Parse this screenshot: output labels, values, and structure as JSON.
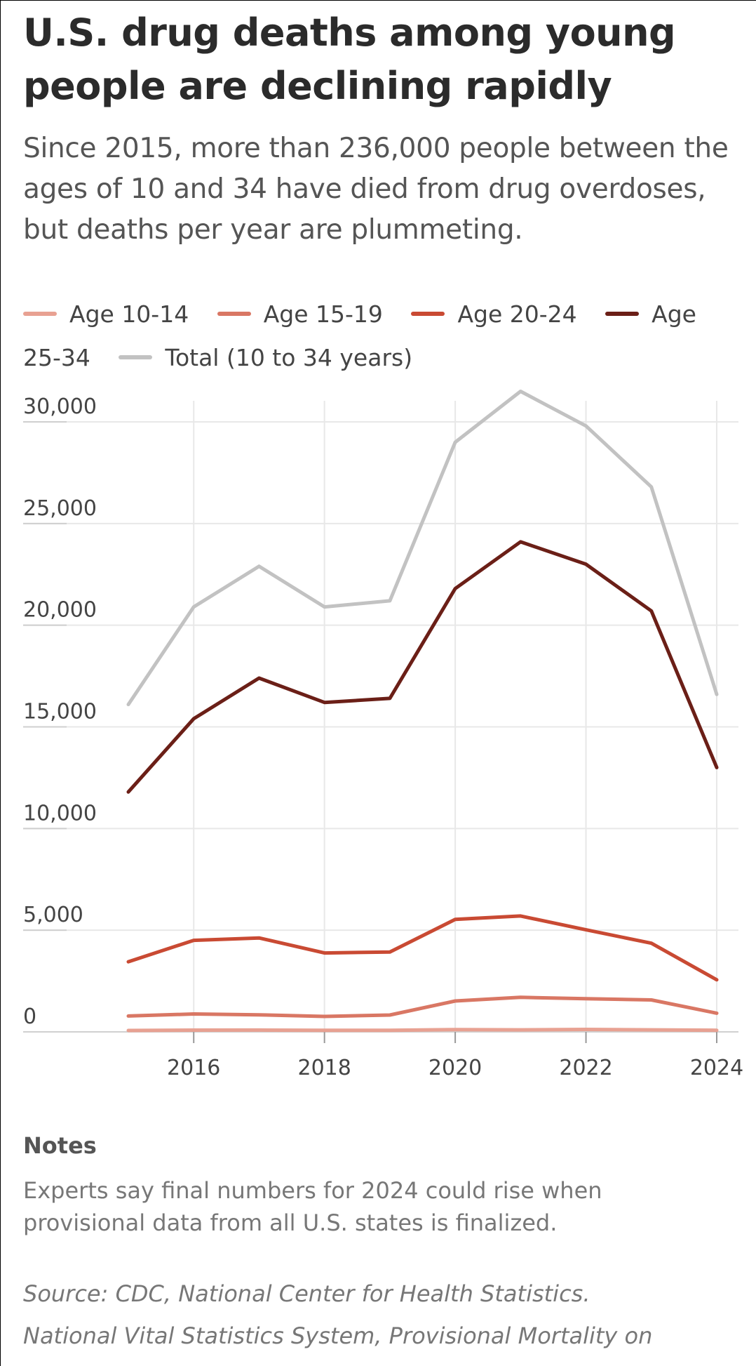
{
  "header": {
    "title": "U.S. drug deaths among young people are declining rapidly",
    "subtitle": "Since 2015, more than 236,000 people between the ages of 10 and 34 have died from drug overdoses, but deaths per year are plummeting."
  },
  "chart_data": {
    "type": "line",
    "title": "U.S. drug deaths among young people are declining rapidly",
    "subtitle": "Since 2015, more than 236,000 people between the ages of 10 and 34 have died from drug overdoses, but deaths per year are plummeting.",
    "xlabel": "",
    "ylabel": "",
    "x": [
      2015,
      2016,
      2017,
      2018,
      2019,
      2020,
      2021,
      2022,
      2023,
      2024
    ],
    "x_ticks": [
      2016,
      2018,
      2020,
      2022,
      2024
    ],
    "x_tick_labels": [
      "2016",
      "2018",
      "2020",
      "2022",
      "2024"
    ],
    "xlim": [
      2015,
      2024
    ],
    "y_ticks": [
      0,
      5000,
      10000,
      15000,
      20000,
      25000,
      30000
    ],
    "y_tick_labels": [
      "0",
      "5,000",
      "10,000",
      "15,000",
      "20,000",
      "25,000",
      "30,000"
    ],
    "ylim": [
      0,
      31500
    ],
    "grid": true,
    "legend_position": "top",
    "series": [
      {
        "name": "Age 10-14",
        "color": "#e8a192",
        "values": [
          70,
          85,
          90,
          75,
          80,
          110,
          100,
          120,
          100,
          80
        ]
      },
      {
        "name": "Age 15-19",
        "color": "#d97764",
        "values": [
          780,
          880,
          840,
          760,
          830,
          1520,
          1700,
          1630,
          1570,
          920
        ]
      },
      {
        "name": "Age 20-24",
        "color": "#c94a33",
        "values": [
          3450,
          4500,
          4620,
          3880,
          3930,
          5530,
          5700,
          5020,
          4360,
          2560
        ]
      },
      {
        "name": "Age 25-34",
        "color": "#6b1f17",
        "values": [
          11800,
          15400,
          17400,
          16200,
          16400,
          21800,
          24100,
          23000,
          20700,
          13000
        ]
      },
      {
        "name": "Total (10 to 34 years)",
        "color": "#c2c2c2",
        "values": [
          16100,
          20900,
          22900,
          20900,
          21200,
          29000,
          31500,
          29800,
          26800,
          16600
        ]
      }
    ]
  },
  "legend": {
    "items": [
      {
        "label": "Age 10-14",
        "color": "#e8a192"
      },
      {
        "label": "Age 15-19",
        "color": "#d97764"
      },
      {
        "label": "Age 20-24",
        "color": "#c94a33"
      },
      {
        "label": "Age 25-34",
        "color": "#6b1f17"
      },
      {
        "label": "Total (10 to 34 years)",
        "color": "#c2c2c2"
      }
    ]
  },
  "notes": {
    "heading": "Notes",
    "text": "Experts say final numbers for 2024 could rise when provisional data from all U.S. states is finalized."
  },
  "source": {
    "line1": "Source: CDC, National Center for Health Statistics.",
    "line2": "National Vital Statistics System, Provisional Mortality on"
  }
}
